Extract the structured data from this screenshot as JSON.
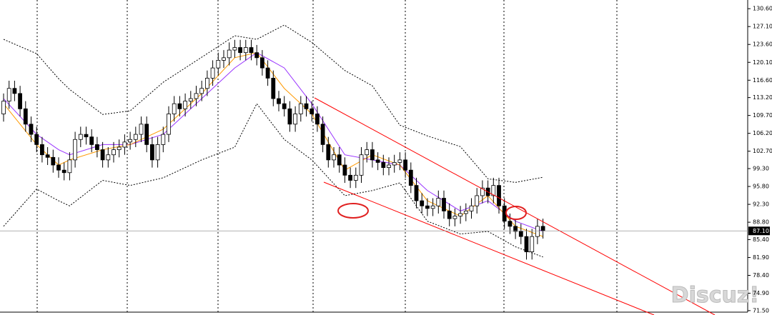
{
  "chart_data": {
    "type": "candlestick",
    "ylim": [
      71.2,
      132.3
    ],
    "yticks": [
      {
        "value": 130.6,
        "label": "130.60"
      },
      {
        "value": 127.1,
        "label": "127.10"
      },
      {
        "value": 123.6,
        "label": "123.60"
      },
      {
        "value": 120.1,
        "label": "120.10"
      },
      {
        "value": 116.6,
        "label": "116.60"
      },
      {
        "value": 113.2,
        "label": "113.20"
      },
      {
        "value": 109.7,
        "label": "109.70"
      },
      {
        "value": 106.2,
        "label": "106.20"
      },
      {
        "value": 102.7,
        "label": "102.70"
      },
      {
        "value": 99.3,
        "label": "99.30"
      },
      {
        "value": 95.8,
        "label": "95.80"
      },
      {
        "value": 92.3,
        "label": "92.30"
      },
      {
        "value": 88.8,
        "label": "88.80"
      },
      {
        "value": 85.4,
        "label": "85.40"
      },
      {
        "value": 81.9,
        "label": "81.90"
      },
      {
        "value": 78.4,
        "label": "78.40"
      },
      {
        "value": 74.9,
        "label": "74.90"
      },
      {
        "value": 71.5,
        "label": "71.50"
      }
    ],
    "last_price": {
      "value": 87.1,
      "label": "87.10"
    },
    "watermark": "Discuz!",
    "open": [
      110,
      112.5,
      115,
      114,
      111,
      108,
      106,
      104,
      102,
      101.5,
      100,
      99,
      98.5,
      101,
      105,
      106,
      105.5,
      104,
      103,
      101,
      102,
      103,
      103.5,
      104.5,
      105,
      106,
      108,
      104,
      101,
      104,
      106,
      110,
      112,
      111,
      112.5,
      113,
      114,
      115,
      117,
      119,
      120.5,
      121,
      122.5,
      123,
      122,
      123,
      122,
      121,
      119,
      117,
      113,
      112,
      111,
      108,
      110,
      112,
      111,
      110,
      108,
      104,
      101,
      102,
      100,
      98,
      97,
      98,
      102,
      103,
      101,
      100.5,
      99.5,
      100,
      100.5,
      101,
      99,
      96,
      93,
      92,
      91.5,
      92,
      93.5,
      91,
      89.5,
      90,
      90.5,
      91,
      92,
      94,
      95.5,
      94,
      96,
      92,
      89,
      88,
      87,
      86,
      83,
      86,
      88
    ],
    "high": [
      114,
      116.5,
      116.5,
      115.5,
      112.5,
      109.5,
      107.5,
      105.5,
      103.5,
      103,
      101.5,
      100.5,
      102.5,
      106.5,
      107.5,
      107.5,
      107,
      105.5,
      104.5,
      103.5,
      104.5,
      105,
      106,
      106.5,
      107.5,
      109.5,
      109.5,
      105.5,
      105.5,
      107.5,
      111.5,
      113.5,
      113.5,
      114,
      114.5,
      115.5,
      116.5,
      118.5,
      120.5,
      122,
      122.5,
      124,
      124.5,
      124.5,
      124.5,
      124.5,
      123.5,
      122.5,
      120.5,
      118.5,
      114.5,
      113.5,
      112.5,
      111.5,
      113.5,
      113.5,
      112.5,
      111.5,
      109.5,
      105.5,
      103.5,
      103.5,
      101.5,
      99.5,
      99.5,
      103.5,
      104.5,
      104.5,
      102.5,
      102,
      101.5,
      102,
      102.5,
      102.5,
      100.5,
      97.5,
      94.5,
      93.5,
      93.5,
      95,
      95,
      92.5,
      91.5,
      92,
      92.5,
      93.5,
      95.5,
      97,
      97,
      97.5,
      97.5,
      93.5,
      90.5,
      89.5,
      88.5,
      87.5,
      87.5,
      89.5,
      89.5
    ],
    "low": [
      108.5,
      111,
      112.5,
      109.5,
      106.5,
      104.5,
      102.5,
      100.5,
      100,
      98.5,
      97.5,
      97,
      97,
      99.5,
      103.5,
      104,
      102.5,
      101.5,
      99.5,
      99.5,
      100.5,
      101.5,
      102,
      103,
      103.5,
      104.5,
      102.5,
      99.5,
      99.5,
      102.5,
      104.5,
      108.5,
      109.5,
      109.5,
      111,
      111.5,
      112.5,
      113.5,
      115.5,
      117.5,
      119,
      119.5,
      121,
      120.5,
      120.5,
      120.5,
      119.5,
      117.5,
      115.5,
      111.5,
      110.5,
      109.5,
      106.5,
      106.5,
      108.5,
      109.5,
      108.5,
      106.5,
      102.5,
      99.5,
      99.5,
      98.5,
      96.5,
      95.5,
      95.5,
      96.5,
      100.5,
      99.5,
      99,
      98,
      98,
      98.5,
      99,
      97.5,
      94.5,
      91.5,
      90.5,
      90,
      90,
      90.5,
      89.5,
      88,
      88,
      88.5,
      89,
      89.5,
      90.5,
      92.5,
      92.5,
      92.5,
      90.5,
      87.5,
      86.5,
      85.5,
      84.5,
      81.5,
      81.5,
      84.5,
      85.6
    ],
    "close": [
      112.5,
      115,
      114,
      111,
      108,
      106,
      104,
      102,
      101.5,
      100,
      99,
      98.5,
      101,
      105,
      106,
      105.5,
      104,
      103,
      101,
      102,
      103,
      103.5,
      104.5,
      105,
      106,
      108,
      104,
      101,
      104,
      106,
      110,
      112,
      111,
      112.5,
      113,
      114,
      115,
      117,
      119,
      120.5,
      121,
      122.5,
      123,
      122,
      123,
      122,
      121,
      119,
      117,
      113,
      112,
      111,
      108,
      110,
      112,
      111,
      110,
      108,
      104,
      101,
      102,
      100,
      98,
      97,
      98,
      102,
      103,
      101,
      100.5,
      99.5,
      100,
      100.5,
      101,
      99,
      96,
      93,
      92,
      91.5,
      92,
      93.5,
      91,
      89.5,
      90,
      90.5,
      91,
      92,
      94,
      95.5,
      94,
      96,
      92,
      89,
      88,
      87,
      86,
      83,
      86,
      88,
      87.1
    ],
    "series": [
      {
        "color": "#000000",
        "dash": true,
        "x": [
          0,
          6,
          10,
          12,
          18,
          23,
          29,
          36,
          42,
          46,
          51,
          56,
          62,
          67,
          72,
          77,
          83,
          88,
          93,
          98
        ],
        "values": [
          124.6,
          121.8,
          116.9,
          114.8,
          109.9,
          110.6,
          116.2,
          121.1,
          125.3,
          124.6,
          127.4,
          124,
          118.5,
          115.5,
          107.8,
          105.7,
          103.6,
          97.3,
          96.6,
          97.6
        ]
      },
      {
        "color": "#000000",
        "dash": true,
        "x": [
          0,
          6,
          10,
          12,
          18,
          23,
          29,
          36,
          42,
          46,
          51,
          56,
          62,
          67,
          72,
          77,
          83,
          88,
          93,
          98
        ],
        "values": [
          88,
          95.3,
          93,
          92,
          97,
          96,
          97.5,
          101,
          103.5,
          112,
          105,
          101,
          94,
          95,
          96.5,
          89,
          86.5,
          87,
          84,
          82
        ]
      },
      {
        "color": "#9933ff",
        "dash": false,
        "x": [
          0,
          6,
          10,
          12,
          18,
          23,
          29,
          36,
          42,
          46,
          51,
          56,
          62,
          67,
          72,
          77,
          83,
          88,
          93,
          98
        ],
        "values": [
          113,
          106,
          103,
          102,
          104,
          104,
          106,
          113,
          119,
          122,
          119,
          112,
          102,
          101,
          100,
          95,
          91,
          93,
          89,
          87
        ]
      },
      {
        "color": "#ff9900",
        "dash": false,
        "x": [
          0,
          6,
          10,
          12,
          18,
          23,
          29,
          36,
          42,
          46,
          51,
          56,
          62,
          67,
          72,
          77,
          83,
          88,
          93,
          98
        ],
        "values": [
          112,
          104,
          100,
          101,
          103,
          104,
          107,
          114,
          121,
          122,
          115,
          110,
          99,
          102,
          100,
          93,
          90,
          94,
          88,
          86
        ]
      }
    ]
  }
}
